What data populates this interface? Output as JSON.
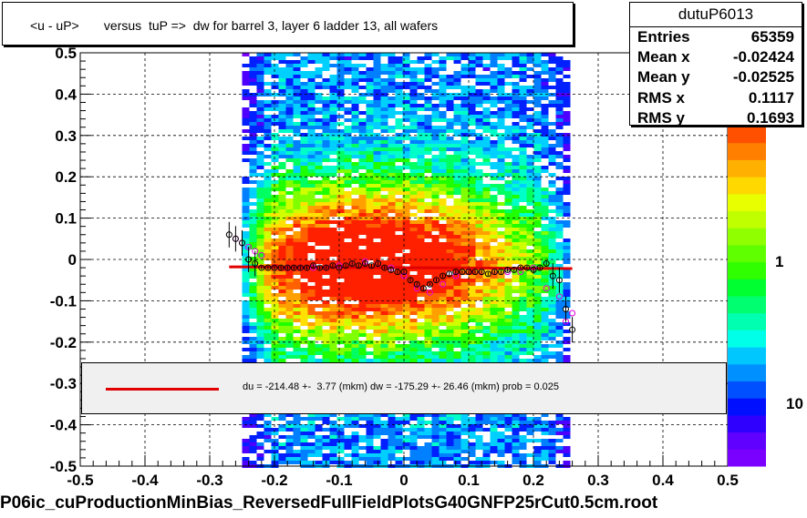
{
  "title": "<u - uP>       versus  tuP =>  dw for barrel 3, layer 6 ladder 13, all wafers",
  "stats": {
    "name": "dutuP6013",
    "rows": [
      {
        "label": "Entries",
        "value": "65359"
      },
      {
        "label": "Mean x",
        "value": "-0.02424"
      },
      {
        "label": "Mean y",
        "value": "-0.02525"
      },
      {
        "label": "RMS x",
        "value": "0.1117"
      },
      {
        "label": "RMS y",
        "value": "0.1693"
      }
    ]
  },
  "legend": {
    "fit_text": "du = -214.48 +-  3.77 (mkm) dw = -175.29 +- 26.46 (mkm) prob = 0.025",
    "line_color": "#e00000"
  },
  "footer": "P06ic_cuProductionMinBias_ReversedFullFieldPlotsG40GNFP25rCut0.5cm.root",
  "colorbar": {
    "tick_labels": [
      "1",
      "10"
    ]
  },
  "chart_data": {
    "type": "heatmap",
    "xlim": [
      -0.5,
      0.5
    ],
    "ylim": [
      -0.5,
      0.5
    ],
    "x_tick_labels": [
      "-0.5",
      "-0.4",
      "-0.3",
      "-0.2",
      "-0.1",
      "0",
      "0.1",
      "0.2",
      "0.3",
      "0.4",
      "0.5"
    ],
    "y_tick_labels": [
      "-0.5",
      "-0.4",
      "-0.3",
      "-0.2",
      "-0.1",
      "0",
      "0.1",
      "0.2",
      "0.3",
      "0.4",
      "0.5"
    ],
    "grid": true,
    "heatmap_extent": {
      "x": [
        -0.25,
        0.25
      ],
      "y": [
        -0.5,
        0.5
      ]
    },
    "fit_line": {
      "x": [
        -0.27,
        0.26
      ],
      "y": [
        -0.018,
        -0.022
      ],
      "color": "#e00000"
    },
    "profile_black": {
      "x": [
        -0.27,
        -0.26,
        -0.25,
        -0.24,
        -0.23,
        -0.22,
        -0.21,
        -0.2,
        -0.19,
        -0.18,
        -0.17,
        -0.16,
        -0.15,
        -0.14,
        -0.13,
        -0.12,
        -0.11,
        -0.1,
        -0.09,
        -0.08,
        -0.07,
        -0.06,
        -0.05,
        -0.04,
        -0.03,
        -0.02,
        -0.01,
        0.0,
        0.01,
        0.02,
        0.03,
        0.04,
        0.05,
        0.06,
        0.07,
        0.08,
        0.09,
        0.1,
        0.11,
        0.12,
        0.13,
        0.14,
        0.15,
        0.16,
        0.17,
        0.18,
        0.19,
        0.2,
        0.21,
        0.22,
        0.23,
        0.24,
        0.25,
        0.26
      ],
      "y": [
        0.06,
        0.05,
        0.04,
        0.0,
        -0.01,
        -0.02,
        -0.02,
        -0.02,
        -0.02,
        -0.02,
        -0.02,
        -0.02,
        -0.02,
        -0.015,
        -0.02,
        -0.02,
        -0.015,
        -0.02,
        -0.015,
        -0.01,
        -0.015,
        -0.01,
        -0.015,
        -0.01,
        -0.02,
        -0.025,
        -0.03,
        -0.03,
        -0.05,
        -0.06,
        -0.07,
        -0.06,
        -0.05,
        -0.04,
        -0.035,
        -0.03,
        -0.03,
        -0.03,
        -0.03,
        -0.03,
        -0.035,
        -0.03,
        -0.03,
        -0.025,
        -0.025,
        -0.02,
        -0.02,
        -0.025,
        -0.02,
        -0.01,
        -0.04,
        -0.05,
        -0.12,
        -0.17
      ]
    },
    "profile_magenta": {
      "x": [
        -0.26,
        -0.25,
        -0.24,
        -0.23,
        -0.22,
        -0.2,
        -0.18,
        -0.16,
        -0.14,
        -0.12,
        -0.1,
        -0.08,
        -0.06,
        -0.04,
        -0.02,
        0.0,
        0.02,
        0.04,
        0.06,
        0.08,
        0.1,
        0.12,
        0.14,
        0.16,
        0.18,
        0.2,
        0.22,
        0.24,
        0.25,
        0.26
      ],
      "y": [
        0.05,
        0.04,
        0.03,
        0.02,
        0.01,
        -0.02,
        -0.02,
        -0.02,
        -0.02,
        -0.02,
        -0.015,
        -0.01,
        -0.005,
        -0.01,
        -0.02,
        -0.04,
        -0.07,
        -0.08,
        -0.06,
        -0.04,
        -0.03,
        -0.03,
        -0.03,
        -0.03,
        -0.03,
        -0.02,
        -0.07,
        -0.09,
        -0.15,
        -0.13
      ]
    }
  }
}
